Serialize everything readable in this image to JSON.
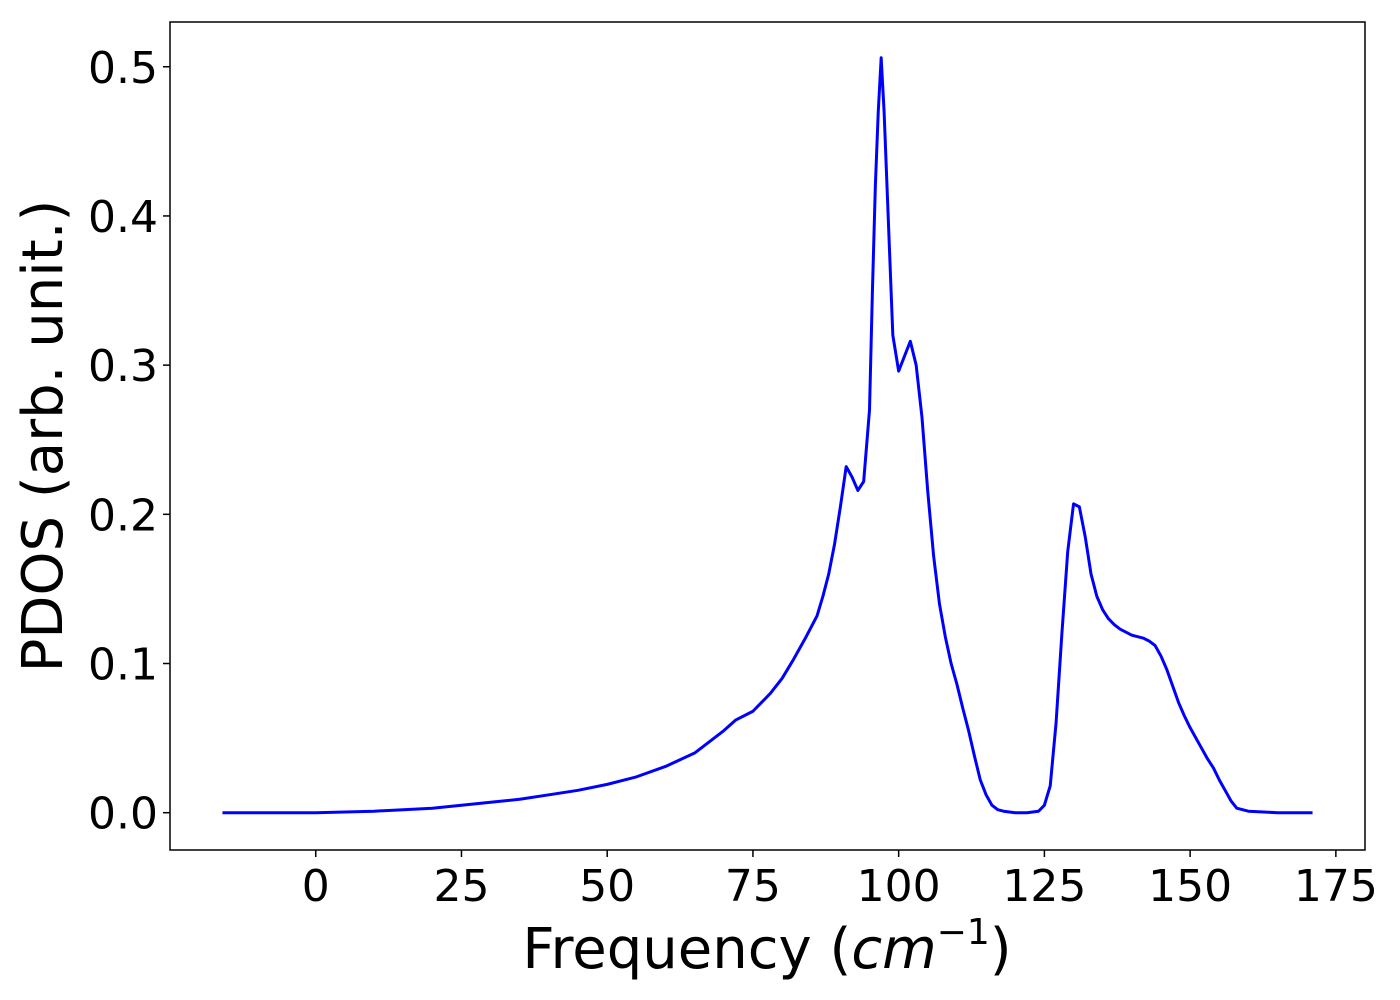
{
  "chart_data": {
    "type": "line",
    "xlabel_main": "Frequency (",
    "xlabel_math": "cm",
    "xlabel_sup": "−1",
    "xlabel_close": ")",
    "ylabel": "PDOS (arb. unit.)",
    "xlim": [
      -25,
      180
    ],
    "ylim": [
      -0.025,
      0.53
    ],
    "xticks": [
      0,
      25,
      50,
      75,
      100,
      125,
      150,
      175
    ],
    "xtick_labels": [
      "0",
      "25",
      "50",
      "75",
      "100",
      "125",
      "150",
      "175"
    ],
    "yticks": [
      0.0,
      0.1,
      0.2,
      0.3,
      0.4,
      0.5
    ],
    "ytick_labels": [
      "0.0",
      "0.1",
      "0.2",
      "0.3",
      "0.4",
      "0.5"
    ],
    "grid": false,
    "series": [
      {
        "color": "#0000ff",
        "x": [
          -16,
          -10,
          0,
          5,
          10,
          15,
          20,
          25,
          30,
          35,
          40,
          45,
          50,
          55,
          60,
          65,
          70,
          72,
          75,
          78,
          80,
          82,
          84,
          86,
          87,
          88,
          89,
          90,
          91,
          92,
          93,
          94,
          95,
          95.5,
          96,
          96.5,
          97,
          97.5,
          98,
          99,
          100,
          101,
          102,
          103,
          104,
          105,
          106,
          107,
          108,
          109,
          110,
          111,
          112,
          113,
          114,
          115,
          116,
          117,
          118,
          120,
          122,
          124,
          125,
          126,
          127,
          128,
          129,
          130,
          131,
          132,
          133,
          134,
          135,
          136,
          137,
          138,
          139,
          140,
          141,
          142,
          143,
          144,
          145,
          146,
          147,
          148,
          149,
          150,
          151,
          152,
          153,
          154,
          155,
          156,
          157,
          158,
          160,
          165,
          171
        ],
        "y": [
          0.0,
          0.0,
          0.0,
          0.0005,
          0.001,
          0.002,
          0.003,
          0.005,
          0.007,
          0.009,
          0.012,
          0.015,
          0.019,
          0.024,
          0.031,
          0.04,
          0.055,
          0.062,
          0.068,
          0.08,
          0.09,
          0.103,
          0.117,
          0.132,
          0.145,
          0.16,
          0.18,
          0.205,
          0.232,
          0.225,
          0.216,
          0.222,
          0.27,
          0.35,
          0.42,
          0.47,
          0.506,
          0.47,
          0.42,
          0.32,
          0.296,
          0.306,
          0.316,
          0.3,
          0.265,
          0.215,
          0.172,
          0.14,
          0.118,
          0.1,
          0.086,
          0.07,
          0.055,
          0.038,
          0.022,
          0.012,
          0.005,
          0.002,
          0.001,
          0.0,
          0.0,
          0.001,
          0.005,
          0.018,
          0.06,
          0.12,
          0.175,
          0.207,
          0.205,
          0.185,
          0.16,
          0.145,
          0.136,
          0.13,
          0.126,
          0.123,
          0.121,
          0.119,
          0.118,
          0.117,
          0.115,
          0.112,
          0.105,
          0.096,
          0.085,
          0.074,
          0.065,
          0.057,
          0.05,
          0.043,
          0.036,
          0.03,
          0.022,
          0.015,
          0.008,
          0.003,
          0.001,
          0.0,
          0.0
        ]
      }
    ]
  }
}
